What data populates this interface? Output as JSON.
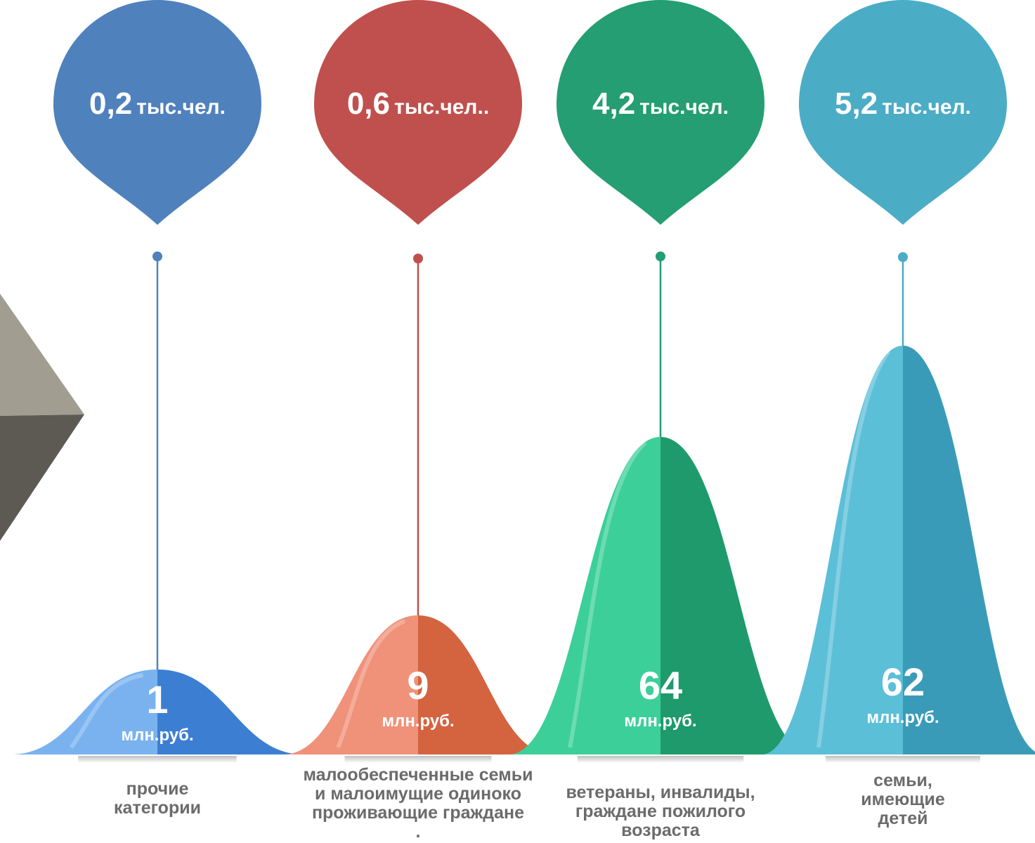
{
  "chart_data": {
    "type": "area",
    "unit_people": "тыс.чел.",
    "unit_money": "млн.руб.",
    "categories": [
      "прочие категории",
      "малообеспеченные семьи и малоимущие одиноко проживающие граждане",
      "ветераны, инвалиды, граждане пожилого возраста",
      "семьи, имеющие детей"
    ],
    "category_label_lines": [
      [
        "прочие",
        "категории"
      ],
      [
        "малообеспеченные семьи",
        "и малоимущие одиноко",
        "проживающие граждане",
        "."
      ],
      [
        "ветераны, инвалиды,",
        "граждане пожилого",
        "возраста"
      ],
      [
        "семьи,",
        "имеющие",
        "детей"
      ]
    ],
    "people": [
      {
        "value": "0,2",
        "suffix": ""
      },
      {
        "value": "0,6",
        "suffix": "."
      },
      {
        "value": "4,2",
        "suffix": ""
      },
      {
        "value": "5,2",
        "suffix": ""
      }
    ],
    "money_values": [
      1,
      9,
      64,
      62
    ],
    "colors": {
      "markers": [
        "#4f81bd",
        "#c0504d",
        "#249e72",
        "#4bacc6"
      ],
      "peaks_light": [
        "#79b2ef",
        "#f0917a",
        "#3ccf9a",
        "#5cbfd8"
      ],
      "peaks_dark": [
        "#3c7fd2",
        "#d4633f",
        "#1f9a6c",
        "#3a9bb9"
      ]
    }
  }
}
